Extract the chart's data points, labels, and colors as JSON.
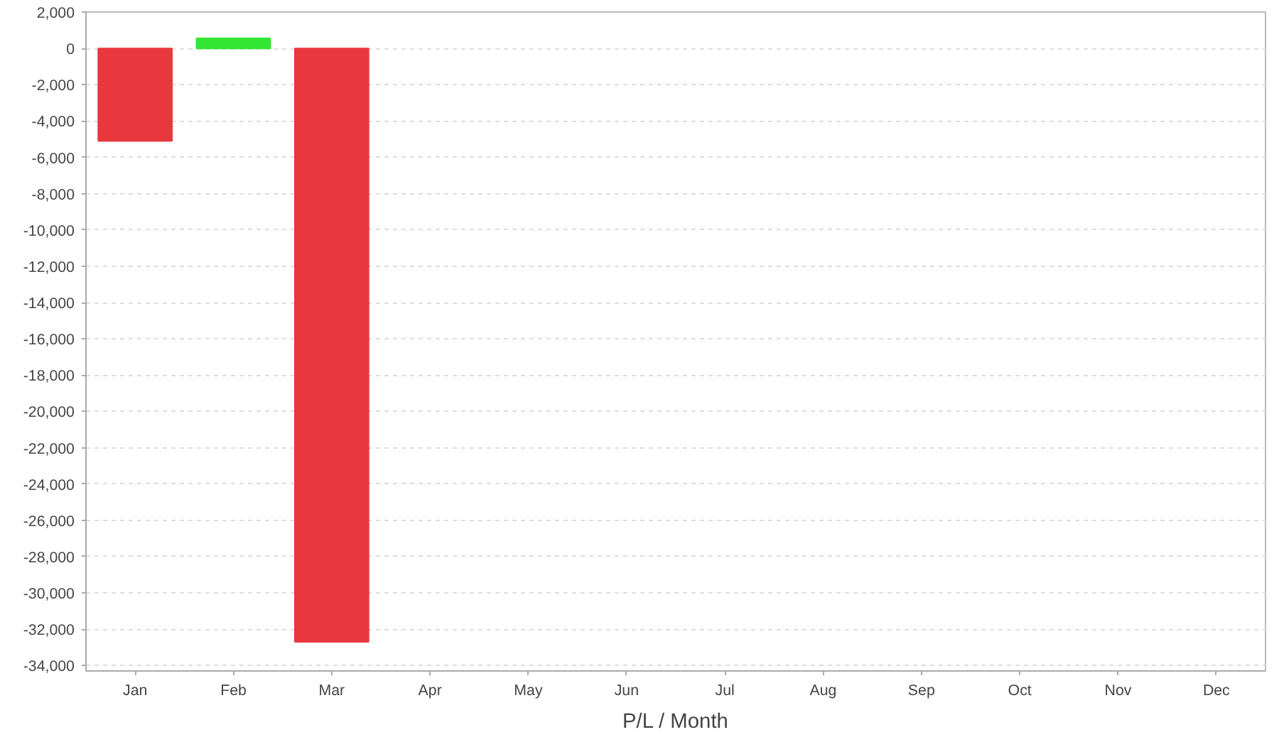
{
  "chart_data": {
    "type": "bar",
    "xlabel": "P/L / Month",
    "categories": [
      "Jan",
      "Feb",
      "Mar",
      "Apr",
      "May",
      "Jun",
      "Jul",
      "Aug",
      "Sep",
      "Oct",
      "Nov",
      "Dec"
    ],
    "values": [
      -5100,
      550,
      -32700,
      null,
      null,
      null,
      null,
      null,
      null,
      null,
      null,
      null
    ],
    "colors": [
      "#e8383d",
      "#33e633",
      "#e8383d",
      null,
      null,
      null,
      null,
      null,
      null,
      null,
      null,
      null
    ],
    "ylim": [
      -34300,
      2000
    ],
    "yticks": [
      {
        "value": 2000,
        "label": "2,000"
      },
      0,
      {
        "value": -2000,
        "label": "-2,000"
      },
      {
        "value": -4000,
        "label": "-4,000"
      },
      {
        "value": -6000,
        "label": "-6,000"
      },
      {
        "value": -8000,
        "label": "-8,000"
      },
      {
        "value": -10000,
        "label": "-10,000"
      },
      {
        "value": -12000,
        "label": "-12,000"
      },
      {
        "value": -14000,
        "label": "-14,000"
      },
      {
        "value": -16000,
        "label": "-16,000"
      },
      {
        "value": -18000,
        "label": "-18,000"
      },
      {
        "value": -20000,
        "label": "-20,000"
      },
      {
        "value": -22000,
        "label": "-22,000"
      },
      {
        "value": -24000,
        "label": "-24,000"
      },
      {
        "value": -26000,
        "label": "-26,000"
      },
      {
        "value": -28000,
        "label": "-28,000"
      },
      {
        "value": -30000,
        "label": "-30,000"
      },
      {
        "value": -32000,
        "label": "-32,000"
      },
      {
        "value": -34000,
        "label": "-34,000"
      }
    ],
    "grid": "y"
  }
}
